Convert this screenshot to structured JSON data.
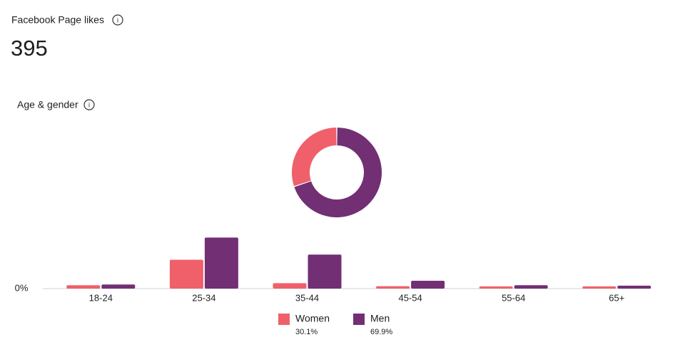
{
  "header": {
    "title": "Facebook Page likes",
    "value": 395
  },
  "section": {
    "title": "Age & gender"
  },
  "chart_data": [
    {
      "type": "donut",
      "values": [
        30.1,
        69.9
      ],
      "value_labels": [
        "30.1%",
        "69.9%"
      ],
      "colors": [
        "#f0606a",
        "#722f74"
      ]
    },
    {
      "type": "bar",
      "categories": [
        "18-24",
        "25-34",
        "35-44",
        "45-54",
        "55-64",
        "65+"
      ],
      "series": [
        {
          "name": "Women",
          "color": "#f0606a",
          "values": [
            2.3,
            19.5,
            3.7,
            1.6,
            1.5,
            1.5
          ]
        },
        {
          "name": "Men",
          "color": "#722f74",
          "values": [
            2.8,
            34.5,
            23.0,
            5.3,
            2.3,
            2.0
          ]
        }
      ],
      "ylim": [
        0,
        40
      ],
      "yticks": [
        {
          "value": 0,
          "label": "0%"
        }
      ]
    }
  ]
}
